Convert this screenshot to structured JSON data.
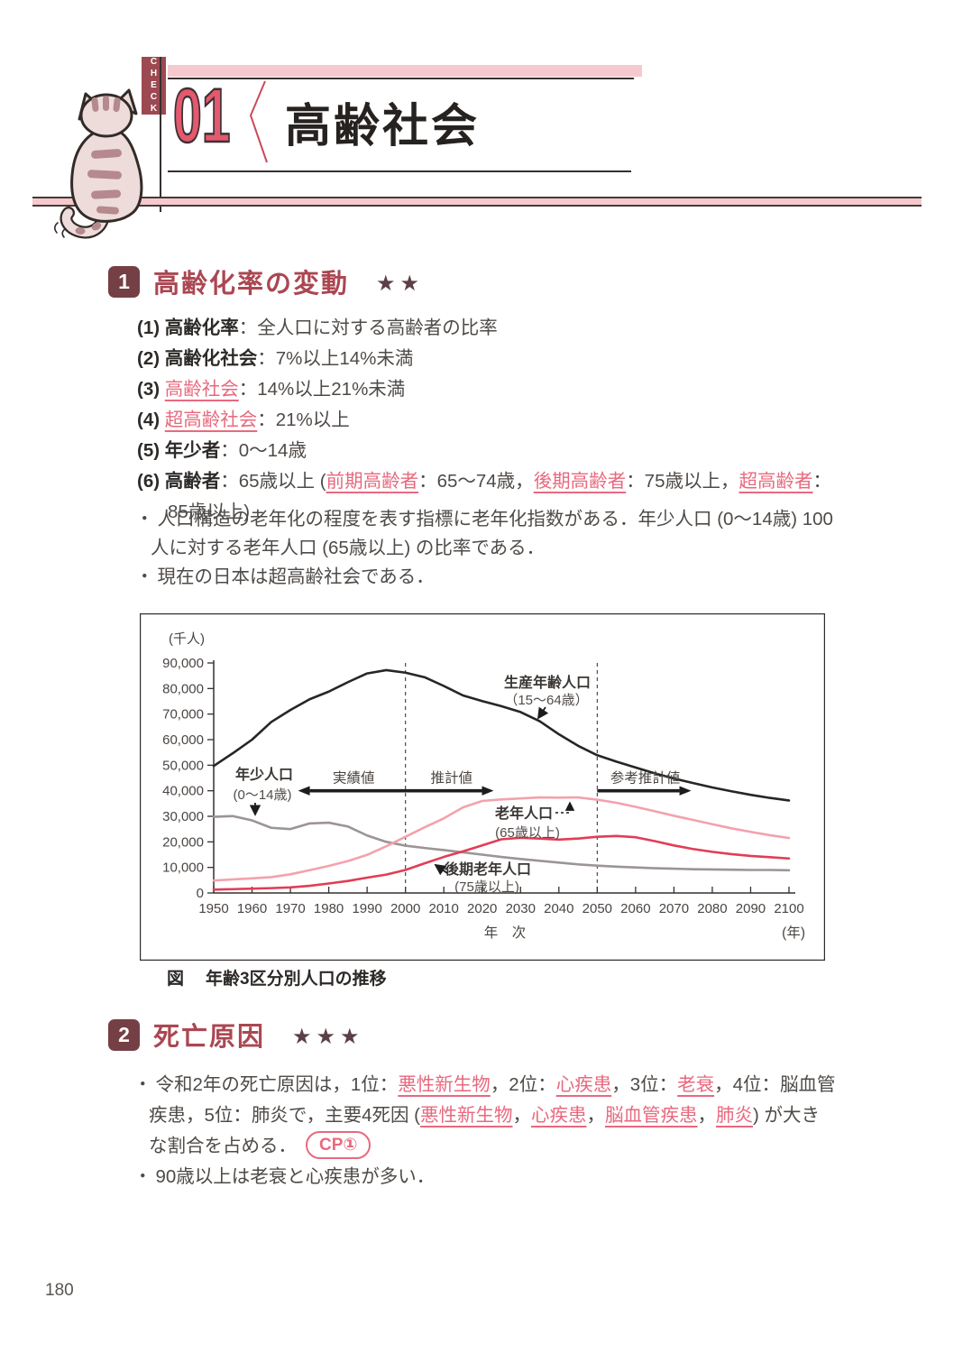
{
  "page_number": "180",
  "header": {
    "check_label": "CHECK",
    "lesson_number": "01",
    "title": "高齢社会"
  },
  "colors": {
    "badge_maroon": "#744045",
    "tab_maroon": "#9c4952",
    "section_title_red": "#ab4752",
    "accent_pink": "#e8697e",
    "band_pink": "#f5c9ce",
    "numeral_pink": "#e4596d"
  },
  "section1": {
    "badge": "1",
    "title": "高齢化率の変動",
    "stars": "★★",
    "items": [
      {
        "lines": [
          {
            "segs": [
              {
                "t": "(1) ",
                "s": "b"
              },
              {
                "t": "高齢化率",
                "s": "b"
              },
              {
                "t": "：",
                "s": "n"
              },
              {
                "t": "全人口に対する高齢者の比率",
                "s": "n"
              }
            ]
          }
        ]
      },
      {
        "lines": [
          {
            "segs": [
              {
                "t": "(2) ",
                "s": "b"
              },
              {
                "t": "高齢化社会",
                "s": "b"
              },
              {
                "t": "：",
                "s": "n"
              },
              {
                "t": "7%以上14%未満",
                "s": "n"
              }
            ]
          }
        ]
      },
      {
        "lines": [
          {
            "segs": [
              {
                "t": "(3) ",
                "s": "b"
              },
              {
                "t": "高齢社会",
                "s": "p"
              },
              {
                "t": "：",
                "s": "n"
              },
              {
                "t": "14%以上21%未満",
                "s": "n"
              }
            ]
          }
        ]
      },
      {
        "lines": [
          {
            "segs": [
              {
                "t": "(4) ",
                "s": "b"
              },
              {
                "t": "超高齢社会",
                "s": "p"
              },
              {
                "t": "：",
                "s": "n"
              },
              {
                "t": "21%以上",
                "s": "n"
              }
            ]
          }
        ]
      },
      {
        "lines": [
          {
            "segs": [
              {
                "t": "(5) ",
                "s": "b"
              },
              {
                "t": "年少者",
                "s": "b"
              },
              {
                "t": "：",
                "s": "n"
              },
              {
                "t": "0～14歳",
                "s": "n"
              }
            ]
          }
        ]
      },
      {
        "lines": [
          {
            "segs": [
              {
                "t": "(6) ",
                "s": "b"
              },
              {
                "t": "高齢者",
                "s": "b"
              },
              {
                "t": "：",
                "s": "n"
              },
              {
                "t": "65歳以上 (",
                "s": "n"
              },
              {
                "t": "前期高齢者",
                "s": "p"
              },
              {
                "t": "：65～74歳，",
                "s": "n"
              },
              {
                "t": "後期高齢者",
                "s": "p"
              },
              {
                "t": "：75歳以上，",
                "s": "n"
              },
              {
                "t": "超高齢者",
                "s": "p"
              },
              {
                "t": "：",
                "s": "n"
              }
            ]
          },
          {
            "c": "cont",
            "segs": [
              {
                "t": "85歳以上)",
                "s": "n"
              }
            ]
          }
        ]
      }
    ],
    "notes": [
      {
        "lines": [
          {
            "segs": [
              {
                "t": "・",
                "s": "dot"
              },
              {
                "t": "人口構造の老年化の程度を表す指標に老年化指数がある．年少人口 (0～14歳) 100",
                "s": "n"
              }
            ]
          },
          {
            "c": "hang",
            "segs": [
              {
                "t": "人に対する老年人口 (65歳以上) の比率である．",
                "s": "n"
              }
            ]
          }
        ]
      },
      {
        "lines": [
          {
            "segs": [
              {
                "t": "・",
                "s": "dot"
              },
              {
                "t": "現在の日本は超高齢社会である．",
                "s": "n"
              }
            ]
          }
        ]
      }
    ]
  },
  "figure": {
    "caption_prefix": "図",
    "caption": "年齢3区分別人口の推移"
  },
  "chart_data": {
    "type": "line",
    "title": "年齢3区分別人口の推移",
    "ylabel": "(千人)",
    "xlabel": "年　次",
    "x_unit_label": "(年)",
    "xlim": [
      1950,
      2100
    ],
    "ylim": [
      0,
      90000
    ],
    "x_ticks": [
      1950,
      1960,
      1970,
      1980,
      1990,
      2000,
      2010,
      2020,
      2030,
      2040,
      2050,
      2060,
      2070,
      2080,
      2090,
      2100
    ],
    "y_ticks": [
      0,
      10000,
      20000,
      30000,
      40000,
      50000,
      60000,
      70000,
      80000,
      90000
    ],
    "grid": false,
    "vlines": [
      2000,
      2050
    ],
    "x": [
      1950,
      1955,
      1960,
      1965,
      1970,
      1975,
      1980,
      1985,
      1990,
      1995,
      2000,
      2005,
      2010,
      2015,
      2020,
      2025,
      2030,
      2035,
      2040,
      2045,
      2050,
      2055,
      2060,
      2065,
      2070,
      2075,
      2080,
      2085,
      2090,
      2095,
      2100
    ],
    "series": [
      {
        "name": "生産年齢人口（15～64歳）",
        "color": "#262626",
        "values": [
          49700,
          54700,
          60000,
          66900,
          71600,
          75800,
          78800,
          82500,
          85900,
          87200,
          86200,
          84400,
          81000,
          77300,
          75100,
          73100,
          70800,
          67200,
          62100,
          57600,
          53900,
          51400,
          49100,
          46800,
          44800,
          43000,
          41300,
          39800,
          38400,
          37200,
          36200
        ]
      },
      {
        "name": "年少人口（0～14歳）",
        "color": "#9b9593",
        "values": [
          29800,
          30100,
          28400,
          25500,
          25000,
          27200,
          27500,
          26000,
          22500,
          20000,
          18500,
          17600,
          16800,
          15900,
          15000,
          14100,
          13300,
          12600,
          11900,
          11200,
          10700,
          10300,
          10000,
          9700,
          9500,
          9300,
          9200,
          9100,
          9000,
          9000,
          8900
        ]
      },
      {
        "name": "老年人口（65歳以上）",
        "color": "#f3a2ac",
        "values": [
          4900,
          5300,
          5700,
          6200,
          7300,
          8900,
          10600,
          12500,
          14900,
          18300,
          22000,
          25700,
          29200,
          33500,
          36000,
          36600,
          37000,
          37400,
          37300,
          37400,
          36500,
          35300,
          33700,
          32000,
          30200,
          28600,
          26900,
          25300,
          23900,
          22600,
          21500
        ]
      },
      {
        "name": "後期老年人口（75歳以上）",
        "color": "#e13d57",
        "values": [
          1300,
          1500,
          1700,
          1900,
          2200,
          2800,
          3700,
          4700,
          6000,
          7200,
          9000,
          11600,
          14100,
          16300,
          18600,
          21000,
          21600,
          21300,
          20900,
          21300,
          22000,
          22300,
          21800,
          20300,
          18600,
          17200,
          16100,
          15200,
          14500,
          14000,
          13500
        ]
      }
    ],
    "arrows": [
      {
        "x1": 1972,
        "x2": 2023,
        "y": 40000,
        "heads": "both"
      },
      {
        "x1": 2050,
        "x2": 2074.5,
        "y": 40000,
        "heads": "right"
      }
    ],
    "arrow_labels": [
      {
        "text": "実績値",
        "x": 1986.5,
        "y": 43200
      },
      {
        "text": "推計値",
        "x": 2012,
        "y": 43200
      },
      {
        "text": "参考推計値",
        "x": 2062.5,
        "y": 43200
      }
    ],
    "labels": {
      "shonen": [
        "年少人口",
        "(0～14歳)"
      ],
      "seisan": [
        "生産年齢人口",
        "（15～64歳）"
      ],
      "ronen": [
        "老年人口",
        "(65歳以上)"
      ],
      "koki": [
        "後期老年人口",
        "(75歳以上)"
      ]
    },
    "legend_position": "inline-annotations"
  },
  "section2": {
    "badge": "2",
    "title": "死亡原因",
    "stars": "★★★",
    "paragraphs": [
      {
        "lines": [
          {
            "segs": [
              {
                "t": "・",
                "s": "dot"
              },
              {
                "t": "令和2年の死亡原因は，1位：",
                "s": "n"
              },
              {
                "t": "悪性新生物",
                "s": "p"
              },
              {
                "t": "，2位：",
                "s": "n"
              },
              {
                "t": "心疾患",
                "s": "p"
              },
              {
                "t": "，3位：",
                "s": "n"
              },
              {
                "t": "老衰",
                "s": "p"
              },
              {
                "t": "，4位：脳血管",
                "s": "n"
              }
            ]
          },
          {
            "c": "hang",
            "segs": [
              {
                "t": "疾患，5位：肺炎で，主要4死因 (",
                "s": "n"
              },
              {
                "t": "悪性新生物",
                "s": "p"
              },
              {
                "t": "，",
                "s": "n"
              },
              {
                "t": "心疾患",
                "s": "p"
              },
              {
                "t": "，",
                "s": "n"
              },
              {
                "t": "脳血管疾患",
                "s": "p"
              },
              {
                "t": "，",
                "s": "n"
              },
              {
                "t": "肺炎",
                "s": "p"
              },
              {
                "t": ") が大き",
                "s": "n"
              }
            ]
          },
          {
            "c": "hang",
            "segs": [
              {
                "t": "な割合を占める．",
                "s": "n"
              },
              {
                "t": "CP①",
                "s": "cp"
              }
            ]
          }
        ]
      },
      {
        "lines": [
          {
            "segs": [
              {
                "t": "・",
                "s": "dot"
              },
              {
                "t": "90歳以上は老衰と心疾患が多い．",
                "s": "n"
              }
            ]
          }
        ]
      }
    ]
  }
}
